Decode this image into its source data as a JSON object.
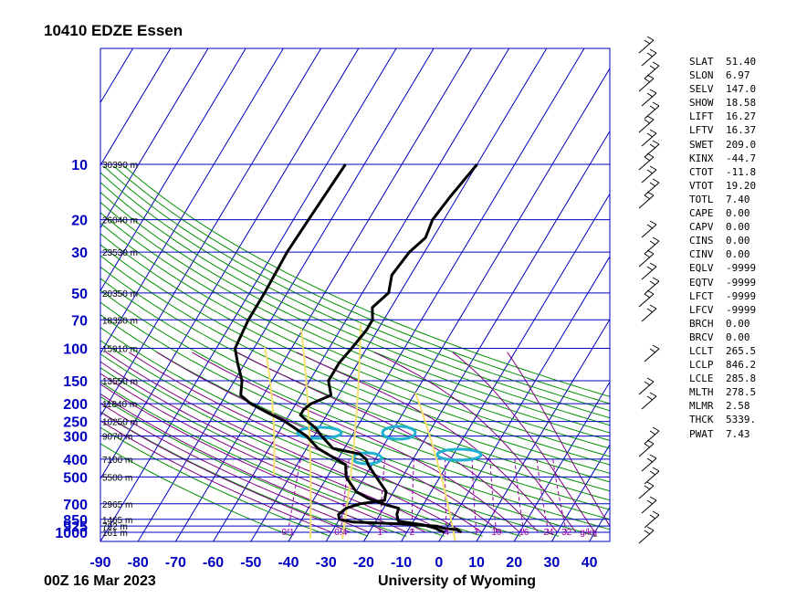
{
  "header": {
    "title": "10410 EDZE Essen"
  },
  "footer": {
    "date": "00Z 16 Mar 2023",
    "source": "University of Wyoming"
  },
  "chart_data": {
    "type": "skew-t",
    "xlabel": "",
    "ylabel": "",
    "x_ticks": [
      -90,
      -80,
      -70,
      -60,
      -50,
      -40,
      -30,
      -20,
      -10,
      0,
      10,
      20,
      30,
      40
    ],
    "xlim": [
      -90,
      40
    ],
    "pressure_levels": [
      {
        "p": 10,
        "label": "10",
        "height": "30390 m"
      },
      {
        "p": 20,
        "label": "20",
        "height": "26040 m"
      },
      {
        "p": 30,
        "label": "30",
        "height": "23530 m"
      },
      {
        "p": 50,
        "label": "50",
        "height": "20350 m"
      },
      {
        "p": 70,
        "label": "70",
        "height": "18350 m"
      },
      {
        "p": 100,
        "label": "100",
        "height": "15910 m"
      },
      {
        "p": 150,
        "label": "150",
        "height": "13550 m"
      },
      {
        "p": 200,
        "label": "200",
        "height": "11840 m"
      },
      {
        "p": 250,
        "label": "250",
        "height": "10250 m"
      },
      {
        "p": 300,
        "label": "300",
        "height": "9070 m"
      },
      {
        "p": 400,
        "label": "400",
        "height": "7100 m"
      },
      {
        "p": 500,
        "label": "500",
        "height": "5500 m"
      },
      {
        "p": 700,
        "label": "700",
        "height": "2965 m"
      },
      {
        "p": 850,
        "label": "850",
        "height": "1465 m"
      },
      {
        "p": 925,
        "label": "925",
        "height": "792 m"
      },
      {
        "p": 1000,
        "label": "1000",
        "height": "161 m"
      }
    ],
    "mixing_ratio_labels": [
      "0.1",
      "0.4",
      "1",
      "2",
      "4",
      "7",
      "10",
      "16",
      "24",
      "32",
      "g/kg"
    ],
    "mixing_ratio_values": [
      0.1,
      0.4,
      1,
      2,
      4,
      7,
      10,
      16,
      24,
      32
    ],
    "series": [
      {
        "name": "",
        "color": "#000000",
        "points": [
          {
            "p": 1000,
            "t": 4.5
          },
          {
            "p": 970,
            "t": 3.0
          },
          {
            "p": 950,
            "t": -1.0
          },
          {
            "p": 925,
            "t": -3.0
          },
          {
            "p": 900,
            "t": -13.0
          },
          {
            "p": 880,
            "t": -26.0
          },
          {
            "p": 850,
            "t": -30.0
          },
          {
            "p": 800,
            "t": -31.0
          },
          {
            "p": 740,
            "t": -30.0
          },
          {
            "p": 700,
            "t": -27.0
          },
          {
            "p": 670,
            "t": -21.0
          },
          {
            "p": 600,
            "t": -22.0
          },
          {
            "p": 500,
            "t": -27.0
          },
          {
            "p": 430,
            "t": -31.0
          },
          {
            "p": 400,
            "t": -32.5
          },
          {
            "p": 375,
            "t": -35.0
          },
          {
            "p": 350,
            "t": -43.0
          },
          {
            "p": 300,
            "t": -48.0
          },
          {
            "p": 270,
            "t": -51.0
          },
          {
            "p": 250,
            "t": -54.0
          },
          {
            "p": 230,
            "t": -57.0
          },
          {
            "p": 215,
            "t": -57.0
          },
          {
            "p": 200,
            "t": -56.0
          },
          {
            "p": 180,
            "t": -52.0
          },
          {
            "p": 150,
            "t": -55.0
          },
          {
            "p": 120,
            "t": -55.0
          },
          {
            "p": 100,
            "t": -54.0
          },
          {
            "p": 80,
            "t": -53.0
          },
          {
            "p": 70,
            "t": -53.0
          },
          {
            "p": 60,
            "t": -55.0
          },
          {
            "p": 50,
            "t": -53.0
          },
          {
            "p": 40,
            "t": -55.0
          },
          {
            "p": 30,
            "t": -54.0
          },
          {
            "p": 25,
            "t": -52.0
          },
          {
            "p": 20,
            "t": -53.0
          },
          {
            "p": 15,
            "t": -52.0
          },
          {
            "p": 10,
            "t": -50.0
          }
        ]
      },
      {
        "name": "",
        "color": "#000000",
        "points": [
          {
            "p": 1000,
            "t": 0.0
          },
          {
            "p": 970,
            "t": -2.0
          },
          {
            "p": 950,
            "t": -3.0
          },
          {
            "p": 930,
            "t": -5.0
          },
          {
            "p": 910,
            "t": -7.0
          },
          {
            "p": 870,
            "t": -14.0
          },
          {
            "p": 800,
            "t": -15.5
          },
          {
            "p": 740,
            "t": -16.0
          },
          {
            "p": 700,
            "t": -21.0
          },
          {
            "p": 650,
            "t": -26.0
          },
          {
            "p": 600,
            "t": -30.0
          },
          {
            "p": 500,
            "t": -35.0
          },
          {
            "p": 430,
            "t": -37.0
          },
          {
            "p": 400,
            "t": -40.5
          },
          {
            "p": 350,
            "t": -47.0
          },
          {
            "p": 300,
            "t": -52.0
          },
          {
            "p": 250,
            "t": -60.0
          },
          {
            "p": 220,
            "t": -67.0
          },
          {
            "p": 200,
            "t": -72.0
          },
          {
            "p": 180,
            "t": -76.0
          },
          {
            "p": 150,
            "t": -78.0
          },
          {
            "p": 120,
            "t": -82.0
          },
          {
            "p": 100,
            "t": -85.0
          },
          {
            "p": 70,
            "t": -86.0
          },
          {
            "p": 50,
            "t": -86.0
          },
          {
            "p": 30,
            "t": -86.5
          },
          {
            "p": 20,
            "t": -86.0
          },
          {
            "p": 10,
            "t": -85.0
          }
        ]
      }
    ]
  },
  "indices": [
    {
      "key": "SLAT",
      "value": "51.40"
    },
    {
      "key": "SLON",
      "value": "6.97"
    },
    {
      "key": "SELV",
      "value": "147.0"
    },
    {
      "key": "SHOW",
      "value": "18.58"
    },
    {
      "key": "LIFT",
      "value": "16.27"
    },
    {
      "key": "LFTV",
      "value": "16.37"
    },
    {
      "key": "SWET",
      "value": "209.0"
    },
    {
      "key": "KINX",
      "value": "-44.7"
    },
    {
      "key": "CTOT",
      "value": "-11.8"
    },
    {
      "key": "VTOT",
      "value": "19.20"
    },
    {
      "key": "TOTL",
      "value": "7.40"
    },
    {
      "key": "CAPE",
      "value": "0.00"
    },
    {
      "key": "CAPV",
      "value": "0.00"
    },
    {
      "key": "CINS",
      "value": "0.00"
    },
    {
      "key": "CINV",
      "value": "0.00"
    },
    {
      "key": "EQLV",
      "value": "-9999"
    },
    {
      "key": "EQTV",
      "value": "-9999"
    },
    {
      "key": "LFCT",
      "value": "-9999"
    },
    {
      "key": "LFCV",
      "value": "-9999"
    },
    {
      "key": "BRCH",
      "value": "0.00"
    },
    {
      "key": "BRCV",
      "value": "0.00"
    },
    {
      "key": "LCLT",
      "value": "265.5"
    },
    {
      "key": "LCLP",
      "value": "846.2"
    },
    {
      "key": "LCLE",
      "value": "285.8"
    },
    {
      "key": "MLTH",
      "value": "278.5"
    },
    {
      "key": "MLMR",
      "value": "2.58"
    },
    {
      "key": "THCK",
      "value": "5339."
    },
    {
      "key": "PWAT",
      "value": "7.43"
    }
  ]
}
